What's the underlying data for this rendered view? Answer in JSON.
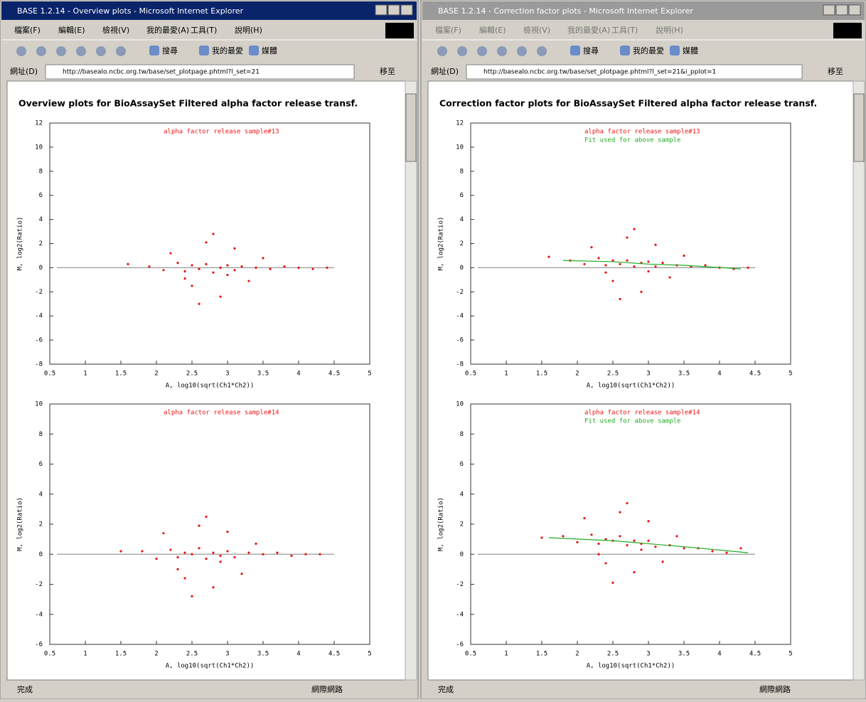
{
  "windows": [
    {
      "title": "BASE 1.2.14 - Overview plots - Microsoft Internet Explorer",
      "menu": [
        "檔案(F)",
        "編輯(E)",
        "檢視(V)",
        "我的最愛(A)",
        "工具(T)",
        "說明(H)"
      ],
      "toolbar": [
        "搜尋",
        "我的最愛",
        "媒體"
      ],
      "address_label": "網址(D)",
      "url": "http://basealo.ncbc.org.tw/base/set_plotpage.phtml?l_set=21",
      "go": "移至",
      "heading": "Overview plots for BioAssaySet Filtered alpha factor release transf.",
      "status": "完成",
      "zone": "網際網路",
      "plots": [
        {
          "type": "scatter",
          "x_label": "A, log10(sqrt(Ch1*Ch2))",
          "y_label": "M, log2(Ratio)",
          "xlim": [
            0.5,
            5
          ],
          "ylim": [
            -8,
            12
          ],
          "xticks": [
            0.5,
            1,
            1.5,
            2,
            2.5,
            3,
            3.5,
            4,
            4.5,
            5
          ],
          "yticks": [
            -8,
            -6,
            -4,
            -2,
            0,
            2,
            4,
            6,
            8,
            10,
            12
          ],
          "series": [
            {
              "color": "#999999",
              "type": "line",
              "x": [
                0.6,
                4.5
              ],
              "values": [
                0,
                0
              ]
            },
            {
              "name": "alpha factor release sample#13",
              "color": "#ee1111",
              "type": "scatter",
              "x": [
                1.9,
                2.1,
                2.3,
                2.4,
                2.5,
                2.6,
                2.7,
                2.8,
                2.9,
                3.0,
                3.1,
                3.2,
                3.4,
                3.6,
                3.8,
                4.0,
                4.2,
                2.2,
                2.5,
                2.7,
                2.9,
                3.1,
                3.3,
                2.6,
                2.8,
                3.5,
                2.4,
                3.0,
                1.6,
                4.4
              ],
              "values": [
                0.1,
                -0.2,
                0.4,
                -0.3,
                0.2,
                -0.1,
                0.3,
                -0.4,
                0.0,
                0.2,
                -0.2,
                0.1,
                0.0,
                -0.1,
                0.1,
                0.0,
                -0.1,
                1.2,
                -1.5,
                2.1,
                -2.4,
                1.6,
                -1.1,
                -3.0,
                2.8,
                0.8,
                -0.9,
                -0.6,
                0.3,
                0.0
              ]
            }
          ]
        },
        {
          "type": "scatter",
          "x_label": "A, log10(sqrt(Ch1*Ch2))",
          "y_label": "M, log2(Ratio)",
          "xlim": [
            0.5,
            5
          ],
          "ylim": [
            -6,
            10
          ],
          "xticks": [
            0.5,
            1,
            1.5,
            2,
            2.5,
            3,
            3.5,
            4,
            4.5,
            5
          ],
          "yticks": [
            -6,
            -4,
            -2,
            0,
            2,
            4,
            6,
            8,
            10
          ],
          "series": [
            {
              "color": "#999999",
              "type": "line",
              "x": [
                0.6,
                4.5
              ],
              "values": [
                0,
                0
              ]
            },
            {
              "name": "alpha factor release sample#14",
              "color": "#ee1111",
              "type": "scatter",
              "x": [
                1.8,
                2.0,
                2.2,
                2.3,
                2.4,
                2.5,
                2.6,
                2.7,
                2.8,
                2.9,
                3.0,
                3.1,
                3.3,
                3.5,
                3.7,
                3.9,
                4.1,
                2.1,
                2.4,
                2.6,
                2.8,
                3.0,
                3.2,
                2.5,
                2.7,
                3.4,
                2.3,
                2.9,
                1.5,
                4.3
              ],
              "values": [
                0.2,
                -0.3,
                0.3,
                -0.2,
                0.1,
                0.0,
                0.4,
                -0.3,
                0.1,
                -0.1,
                0.2,
                -0.2,
                0.1,
                0.0,
                0.1,
                -0.1,
                0.0,
                1.4,
                -1.6,
                1.9,
                -2.2,
                1.5,
                -1.3,
                -2.8,
                2.5,
                0.7,
                -1.0,
                -0.5,
                0.2,
                0.0
              ]
            }
          ]
        }
      ]
    },
    {
      "title": "BASE 1.2.14 - Correction factor plots - Microsoft Internet Explorer",
      "menu": [
        "檔案(F)",
        "編輯(E)",
        "檢視(V)",
        "我的最愛(A)",
        "工具(T)",
        "說明(H)"
      ],
      "toolbar": [
        "搜尋",
        "我的最愛",
        "媒體"
      ],
      "address_label": "網址(D)",
      "url": "http://basealo.ncbc.org.tw/base/set_plotpage.phtml?l_set=21&i_pplot=1",
      "go": "移至",
      "heading": "Correction factor plots for BioAssaySet Filtered alpha factor release transf.",
      "status": "完成",
      "zone": "網際網路",
      "plots": [
        {
          "type": "scatter",
          "x_label": "A, log10(sqrt(Ch1*Ch2))",
          "y_label": "M, log2(Ratio)",
          "xlim": [
            0.5,
            5
          ],
          "ylim": [
            -8,
            12
          ],
          "xticks": [
            0.5,
            1,
            1.5,
            2,
            2.5,
            3,
            3.5,
            4,
            4.5,
            5
          ],
          "yticks": [
            -8,
            -6,
            -4,
            -2,
            0,
            2,
            4,
            6,
            8,
            10,
            12
          ],
          "series": [
            {
              "color": "#999999",
              "type": "line",
              "x": [
                0.6,
                4.5
              ],
              "values": [
                0,
                0
              ]
            },
            {
              "name": "alpha factor release sample#13",
              "color": "#ee1111",
              "type": "scatter",
              "x": [
                1.9,
                2.1,
                2.3,
                2.4,
                2.5,
                2.6,
                2.7,
                2.8,
                2.9,
                3.0,
                3.1,
                3.2,
                3.4,
                3.6,
                3.8,
                4.0,
                4.2,
                2.2,
                2.5,
                2.7,
                2.9,
                3.1,
                3.3,
                2.6,
                2.8,
                3.5,
                2.4,
                3.0,
                1.6,
                4.4
              ],
              "values": [
                0.6,
                0.3,
                0.8,
                0.2,
                0.6,
                0.3,
                0.6,
                0.1,
                0.4,
                0.5,
                0.1,
                0.4,
                0.2,
                0.1,
                0.2,
                0.0,
                -0.1,
                1.7,
                -1.1,
                2.5,
                -2.0,
                1.9,
                -0.8,
                -2.6,
                3.2,
                1.0,
                -0.4,
                -0.3,
                0.9,
                0.0
              ]
            },
            {
              "name": "Fit used for above sample",
              "color": "#22aa22",
              "type": "line",
              "x": [
                1.8,
                2.5,
                3.0,
                3.5,
                4.3
              ],
              "values": [
                0.6,
                0.5,
                0.3,
                0.2,
                -0.1
              ]
            }
          ]
        },
        {
          "type": "scatter",
          "x_label": "A, log10(sqrt(Ch1*Ch2))",
          "y_label": "M, log2(Ratio)",
          "xlim": [
            0.5,
            5
          ],
          "ylim": [
            -6,
            10
          ],
          "xticks": [
            0.5,
            1,
            1.5,
            2,
            2.5,
            3,
            3.5,
            4,
            4.5,
            5
          ],
          "yticks": [
            -6,
            -4,
            -2,
            0,
            2,
            4,
            6,
            8,
            10
          ],
          "series": [
            {
              "color": "#999999",
              "type": "line",
              "x": [
                0.6,
                4.5
              ],
              "values": [
                0,
                0
              ]
            },
            {
              "name": "alpha factor release sample#14",
              "color": "#ee1111",
              "type": "scatter",
              "x": [
                1.8,
                2.0,
                2.2,
                2.3,
                2.4,
                2.5,
                2.6,
                2.7,
                2.8,
                2.9,
                3.0,
                3.1,
                3.3,
                3.5,
                3.7,
                3.9,
                4.1,
                2.1,
                2.4,
                2.6,
                2.8,
                3.0,
                3.2,
                2.5,
                2.7,
                3.4,
                2.3,
                2.9,
                1.5,
                4.3
              ],
              "values": [
                1.2,
                0.8,
                1.3,
                0.7,
                1.0,
                0.9,
                1.2,
                0.6,
                0.9,
                0.7,
                0.9,
                0.5,
                0.6,
                0.4,
                0.4,
                0.2,
                0.1,
                2.4,
                -0.6,
                2.8,
                -1.2,
                2.2,
                -0.5,
                -1.9,
                3.4,
                1.2,
                0.0,
                0.3,
                1.1,
                0.4
              ]
            },
            {
              "name": "Fit used for above sample",
              "color": "#22aa22",
              "type": "line",
              "x": [
                1.6,
                2.5,
                3.0,
                3.5,
                4.4
              ],
              "values": [
                1.1,
                0.9,
                0.7,
                0.5,
                0.1
              ]
            }
          ]
        }
      ]
    }
  ]
}
